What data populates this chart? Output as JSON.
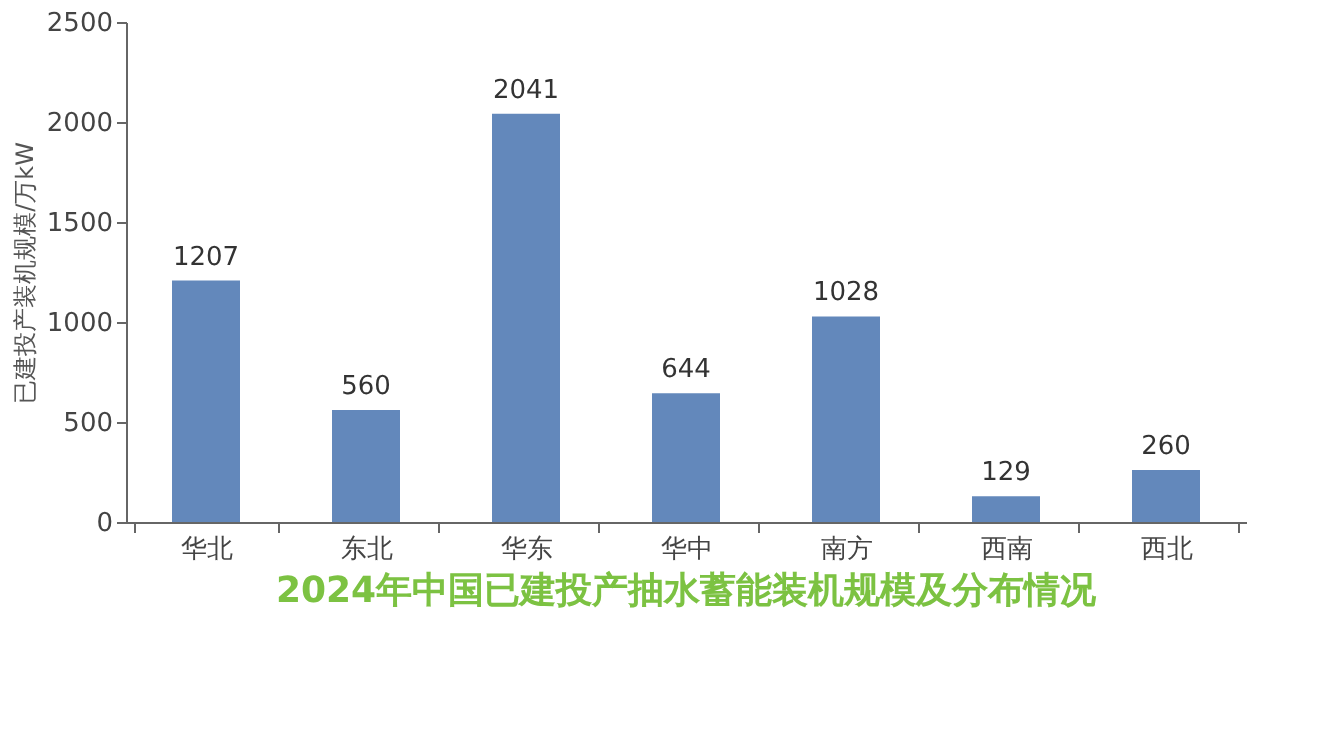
{
  "chart_data": {
    "type": "bar",
    "title": "2024年中国已建投产抽水蓄能装机规模及分布情况",
    "ylabel": "已建投产装机规模/万kW",
    "categories": [
      "华北",
      "东北",
      "华东",
      "华中",
      "南方",
      "西南",
      "西北"
    ],
    "values": [
      1207,
      560,
      2041,
      644,
      1028,
      129,
      260
    ],
    "color": "#6388bb",
    "ylim": [
      0,
      2500
    ],
    "yticks": [
      0,
      500,
      1000,
      1500,
      2000,
      2500
    ],
    "grid": false,
    "data_labels": true
  }
}
